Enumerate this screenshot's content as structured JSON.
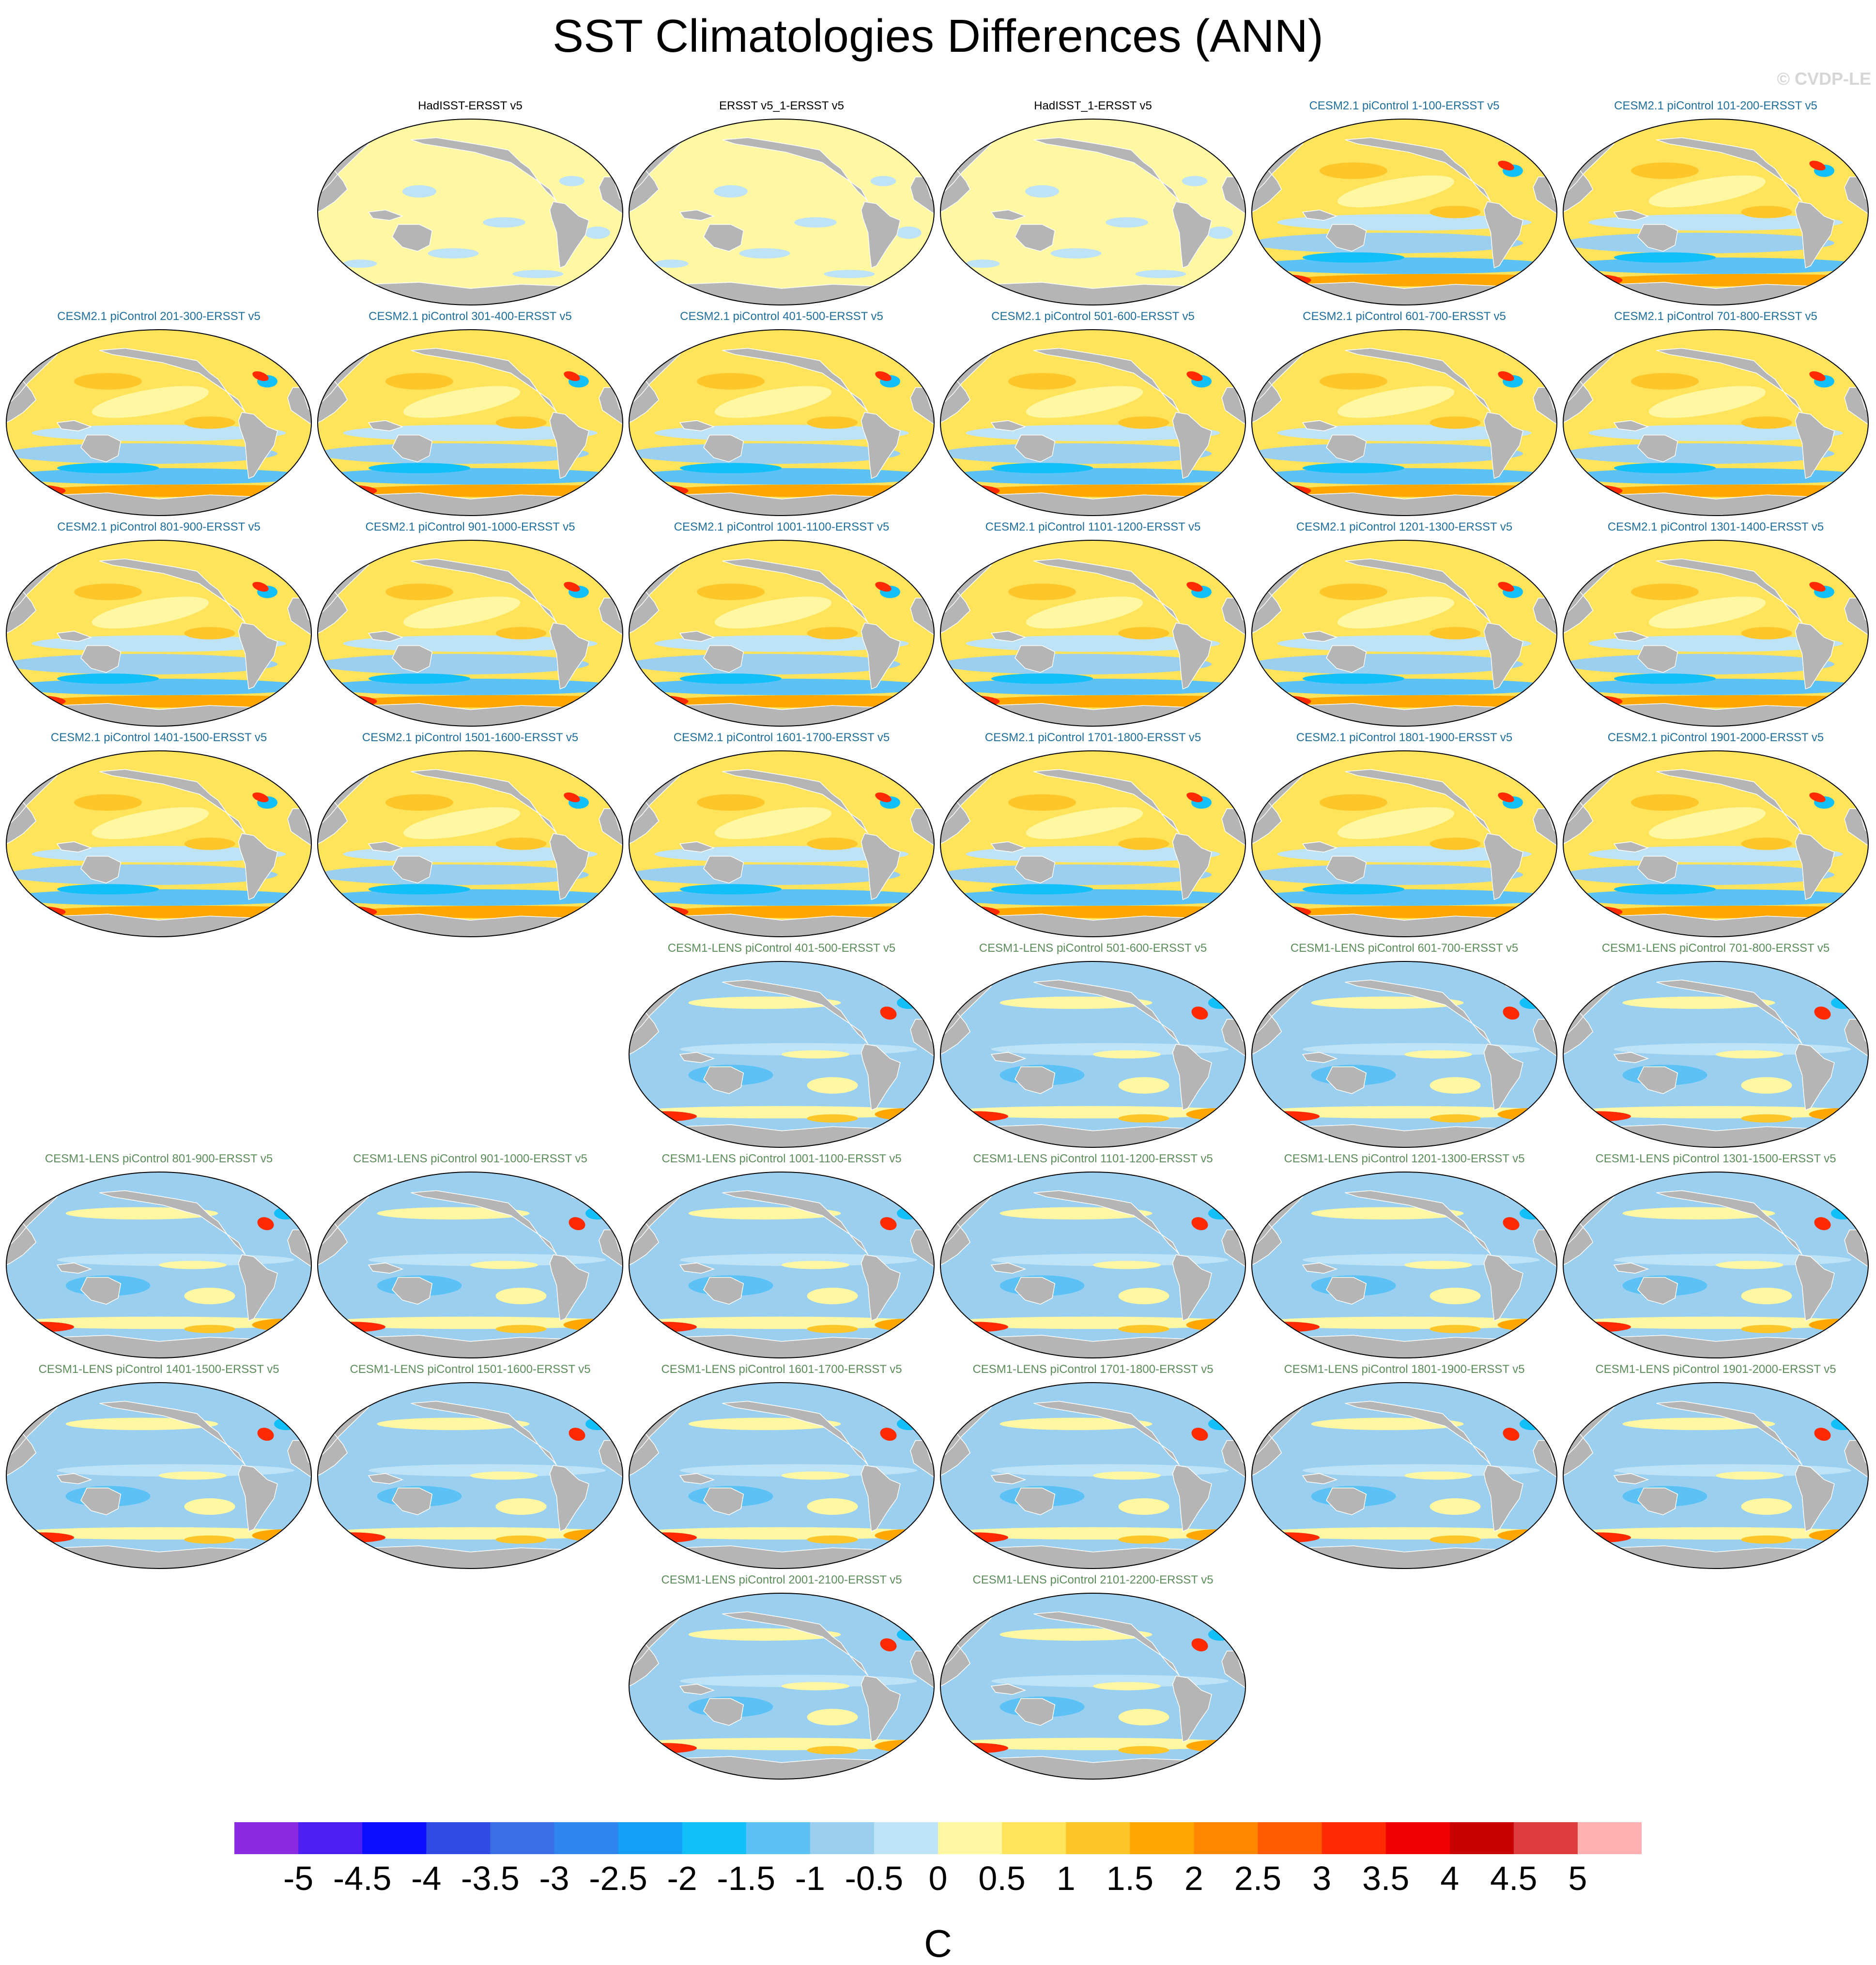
{
  "title": "SST Climatologies Differences (ANN)",
  "credit": "© CVDP-LE",
  "chart_data": {
    "type": "heatmap",
    "title": "SST Climatologies Differences (ANN)",
    "units": "C",
    "colorbar": {
      "ticks": [
        "-5",
        "-4.5",
        "-4",
        "-3.5",
        "-3",
        "-2.5",
        "-2",
        "-1.5",
        "-1",
        "-0.5",
        "0",
        "0.5",
        "1",
        "1.5",
        "2",
        "2.5",
        "3",
        "3.5",
        "4",
        "4.5",
        "5"
      ],
      "colors": [
        "#8a2be2",
        "#4a1ff0",
        "#0d0dff",
        "#2f4be4",
        "#3a6ee6",
        "#2f86f0",
        "#169ff8",
        "#12bff8",
        "#5cc2f5",
        "#9bcfef",
        "#bfe3f6",
        "#fff7a1",
        "#ffe35a",
        "#ffc62a",
        "#ffa600",
        "#ff8800",
        "#ff5a00",
        "#ff2a00",
        "#f00000",
        "#c80000",
        "#dc3c3c",
        "#ffb0b0"
      ]
    },
    "panels": [
      {
        "label": "HadISST-ERSST v5",
        "group": "obs"
      },
      {
        "label": "ERSST v5_1-ERSST v5",
        "group": "obs"
      },
      {
        "label": "HadISST_1-ERSST v5",
        "group": "obs"
      },
      {
        "label": "CESM2.1 piControl 1-100-ERSST v5",
        "group": "cesm2"
      },
      {
        "label": "CESM2.1 piControl 101-200-ERSST v5",
        "group": "cesm2"
      },
      {
        "label": "CESM2.1 piControl 201-300-ERSST v5",
        "group": "cesm2"
      },
      {
        "label": "CESM2.1 piControl 301-400-ERSST v5",
        "group": "cesm2"
      },
      {
        "label": "CESM2.1 piControl 401-500-ERSST v5",
        "group": "cesm2"
      },
      {
        "label": "CESM2.1 piControl 501-600-ERSST v5",
        "group": "cesm2"
      },
      {
        "label": "CESM2.1 piControl 601-700-ERSST v5",
        "group": "cesm2"
      },
      {
        "label": "CESM2.1 piControl 701-800-ERSST v5",
        "group": "cesm2"
      },
      {
        "label": "CESM2.1 piControl 801-900-ERSST v5",
        "group": "cesm2"
      },
      {
        "label": "CESM2.1 piControl 901-1000-ERSST v5",
        "group": "cesm2"
      },
      {
        "label": "CESM2.1 piControl 1001-1100-ERSST v5",
        "group": "cesm2"
      },
      {
        "label": "CESM2.1 piControl 1101-1200-ERSST v5",
        "group": "cesm2"
      },
      {
        "label": "CESM2.1 piControl 1201-1300-ERSST v5",
        "group": "cesm2"
      },
      {
        "label": "CESM2.1 piControl 1301-1400-ERSST v5",
        "group": "cesm2"
      },
      {
        "label": "CESM2.1 piControl 1401-1500-ERSST v5",
        "group": "cesm2"
      },
      {
        "label": "CESM2.1 piControl 1501-1600-ERSST v5",
        "group": "cesm2"
      },
      {
        "label": "CESM2.1 piControl 1601-1700-ERSST v5",
        "group": "cesm2"
      },
      {
        "label": "CESM2.1 piControl 1701-1800-ERSST v5",
        "group": "cesm2"
      },
      {
        "label": "CESM2.1 piControl 1801-1900-ERSST v5",
        "group": "cesm2"
      },
      {
        "label": "CESM2.1 piControl 1901-2000-ERSST v5",
        "group": "cesm2"
      },
      {
        "label": "CESM1-LENS piControl 401-500-ERSST v5",
        "group": "cesm1"
      },
      {
        "label": "CESM1-LENS piControl 501-600-ERSST v5",
        "group": "cesm1"
      },
      {
        "label": "CESM1-LENS piControl 601-700-ERSST v5",
        "group": "cesm1"
      },
      {
        "label": "CESM1-LENS piControl 701-800-ERSST v5",
        "group": "cesm1"
      },
      {
        "label": "CESM1-LENS piControl 801-900-ERSST v5",
        "group": "cesm1"
      },
      {
        "label": "CESM1-LENS piControl 901-1000-ERSST v5",
        "group": "cesm1"
      },
      {
        "label": "CESM1-LENS piControl 1001-1100-ERSST v5",
        "group": "cesm1"
      },
      {
        "label": "CESM1-LENS piControl 1101-1200-ERSST v5",
        "group": "cesm1"
      },
      {
        "label": "CESM1-LENS piControl 1201-1300-ERSST v5",
        "group": "cesm1"
      },
      {
        "label": "CESM1-LENS piControl 1301-1500-ERSST v5",
        "group": "cesm1"
      },
      {
        "label": "CESM1-LENS piControl 1401-1500-ERSST v5",
        "group": "cesm1"
      },
      {
        "label": "CESM1-LENS piControl 1501-1600-ERSST v5",
        "group": "cesm1"
      },
      {
        "label": "CESM1-LENS piControl 1601-1700-ERSST v5",
        "group": "cesm1"
      },
      {
        "label": "CESM1-LENS piControl 1701-1800-ERSST v5",
        "group": "cesm1"
      },
      {
        "label": "CESM1-LENS piControl 1801-1900-ERSST v5",
        "group": "cesm1"
      },
      {
        "label": "CESM1-LENS piControl 1901-2000-ERSST v5",
        "group": "cesm1"
      },
      {
        "label": "CESM1-LENS piControl 2001-2100-ERSST v5",
        "group": "cesm1"
      },
      {
        "label": "CESM1-LENS piControl 2101-2200-ERSST v5",
        "group": "cesm1"
      }
    ]
  }
}
